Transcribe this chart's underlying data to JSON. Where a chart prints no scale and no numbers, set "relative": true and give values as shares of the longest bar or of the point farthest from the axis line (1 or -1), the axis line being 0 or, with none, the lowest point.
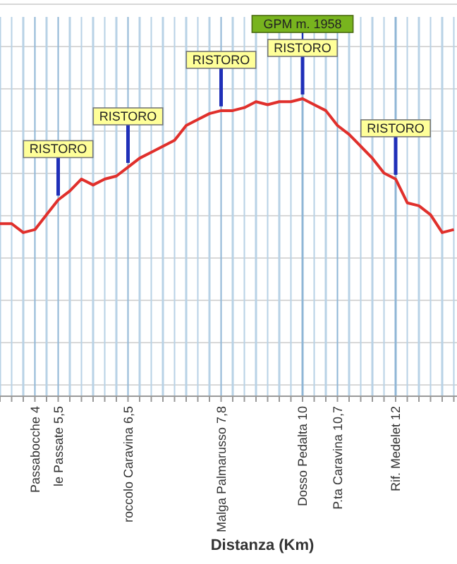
{
  "chart_data": {
    "type": "line",
    "relative": true,
    "xlabel": "Distanza (Km)",
    "tick_labels": "x",
    "grid": true,
    "marker": "none",
    "line_style": "solid",
    "categories": [
      null,
      null,
      null,
      "Passabocche 4",
      null,
      "le Passate 5,5",
      null,
      null,
      null,
      null,
      null,
      "roccolo Caravina 6,5",
      null,
      null,
      null,
      null,
      null,
      null,
      null,
      "Malga Palmarusso 7,8",
      null,
      null,
      null,
      null,
      null,
      null,
      "Dosso Pedalta 10",
      null,
      null,
      "P.ta Caravina 10,7",
      null,
      null,
      null,
      null,
      "Rif. Medelet 12",
      null,
      null,
      null,
      null,
      null
    ],
    "series": [
      {
        "color": "#e0302c",
        "values": [
          0.58,
          0.58,
          0.55,
          0.56,
          0.61,
          0.66,
          0.69,
          0.73,
          0.71,
          0.73,
          0.74,
          0.77,
          0.8,
          0.82,
          0.84,
          0.86,
          0.91,
          0.93,
          0.95,
          0.96,
          0.96,
          0.97,
          0.99,
          0.98,
          0.99,
          0.99,
          1,
          0.98,
          0.96,
          0.91,
          0.88,
          0.84,
          0.8,
          0.75,
          0.73,
          0.65,
          0.64,
          0.61,
          0.55,
          0.56
        ]
      }
    ],
    "annotations": [
      {
        "text": "RISTORO",
        "x": "le Passate 5,5",
        "y": 0.66
      },
      {
        "text": "RISTORO",
        "x": "roccolo Caravina 6,5",
        "y": 0.77
      },
      {
        "text": "RISTORO",
        "x": "Malga Palmarusso 7,8",
        "y": 0.96
      },
      {
        "text": "RISTORO",
        "x": "Dosso Pedalta 10",
        "y": 1
      },
      {
        "text": "GPM m. 1958",
        "x": "Dosso Pedalta 10",
        "y": 1
      },
      {
        "text": "RISTORO",
        "x": "Rif. Medelet 12",
        "y": 0.73
      }
    ]
  }
}
